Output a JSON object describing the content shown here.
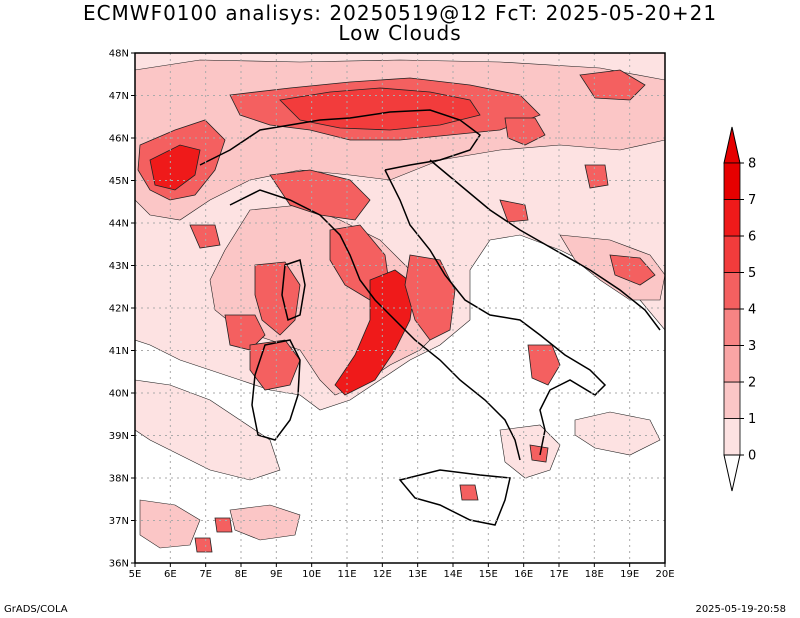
{
  "title": {
    "line1": "ECMWF0100 analisys: 20250519@12 FcT: 2025-05-20+21",
    "line2": "Low Clouds"
  },
  "map": {
    "lat_ticks": [
      "36N",
      "37N",
      "38N",
      "39N",
      "40N",
      "41N",
      "42N",
      "43N",
      "44N",
      "45N",
      "46N",
      "47N",
      "48N"
    ],
    "lon_ticks": [
      "5E",
      "6E",
      "7E",
      "8E",
      "9E",
      "10E",
      "11E",
      "12E",
      "13E",
      "14E",
      "15E",
      "16E",
      "17E",
      "18E",
      "19E",
      "20E"
    ],
    "grid": "dotted",
    "colors": {
      "frame": "#000000",
      "coast": "#000000",
      "grid": "#aaaaaa"
    }
  },
  "colorbar": {
    "labels": [
      "0",
      "1",
      "2",
      "3",
      "4",
      "5",
      "6",
      "7",
      "8"
    ],
    "colors": [
      "#ffffff",
      "#fde2e2",
      "#fbc6c6",
      "#f9a5a5",
      "#f78484",
      "#f46060",
      "#f23c3c",
      "#ef1a1a",
      "#e60000"
    ]
  },
  "footer": {
    "left": "GrADS/COLA",
    "right": "2025-05-19-20:58"
  }
}
